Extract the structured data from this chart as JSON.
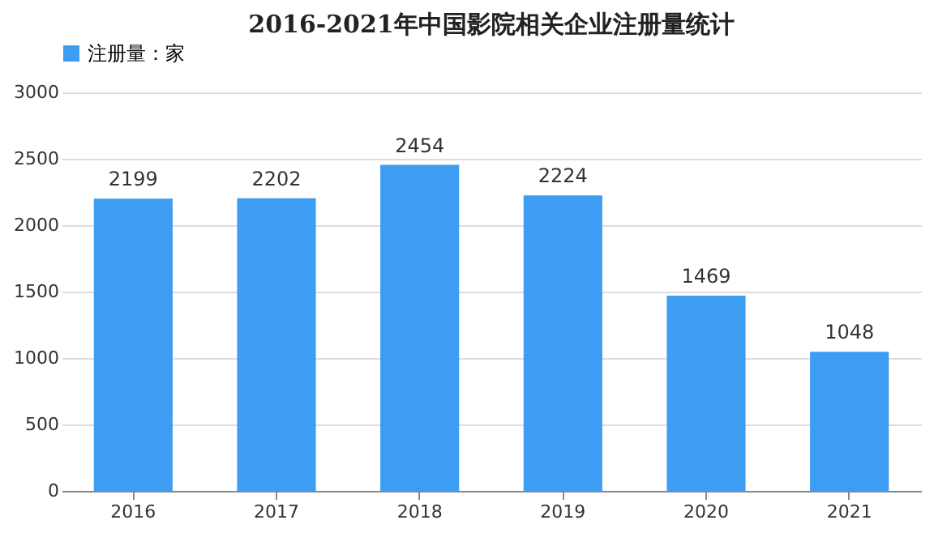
{
  "chart_data": {
    "type": "bar",
    "title": "2016-2021年中国影院相关企业注册量统计",
    "categories": [
      "2016",
      "2017",
      "2018",
      "2019",
      "2020",
      "2021"
    ],
    "series": [
      {
        "name": "注册量：家",
        "color": "#3d9df2",
        "values": [
          2199,
          2202,
          2454,
          2224,
          1469,
          1048
        ]
      }
    ],
    "ylim": [
      0,
      3000
    ],
    "yticks": [
      0,
      500,
      1000,
      1500,
      2000,
      2500,
      3000
    ],
    "grid": "y",
    "legend": "top",
    "data_labels": true
  }
}
